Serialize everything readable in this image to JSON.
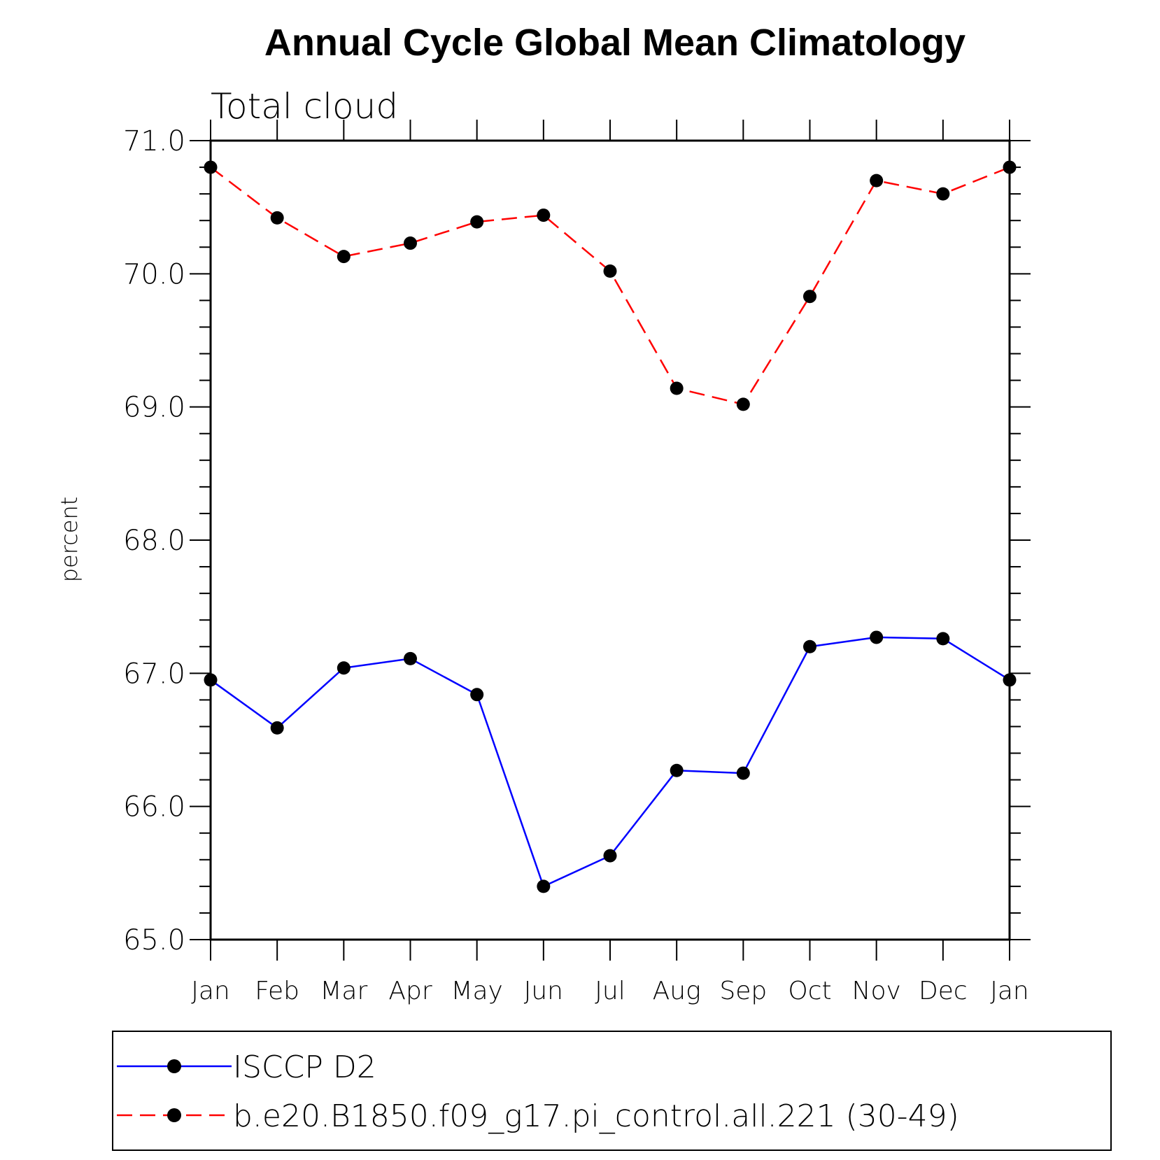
{
  "chart_data": {
    "type": "line",
    "title": "Annual Cycle Global Mean Climatology",
    "subtitle": "Total cloud",
    "xlabel": "",
    "ylabel": "percent",
    "ylim": [
      65.0,
      71.0
    ],
    "ytick_labels": [
      "65.0",
      "66.0",
      "67.0",
      "68.0",
      "69.0",
      "70.0",
      "71.0"
    ],
    "categories": [
      "Jan",
      "Feb",
      "Mar",
      "Apr",
      "May",
      "Jun",
      "Jul",
      "Aug",
      "Sep",
      "Oct",
      "Nov",
      "Dec",
      "Jan"
    ],
    "series": [
      {
        "name": "ISCCP D2",
        "color": "#0000ff",
        "dash": "solid",
        "marker": "circle",
        "values": [
          66.95,
          66.59,
          67.04,
          67.11,
          66.84,
          65.4,
          65.63,
          66.27,
          66.25,
          67.2,
          67.27,
          67.26,
          66.95
        ]
      },
      {
        "name": "b.e20.B1850.f09_g17.pi_control.all.221 (30-49)",
        "color": "#ff0000",
        "dash": "dashed",
        "marker": "circle",
        "values": [
          70.8,
          70.42,
          70.13,
          70.23,
          70.39,
          70.44,
          70.02,
          69.14,
          69.02,
          69.83,
          70.7,
          70.6,
          70.8
        ]
      }
    ],
    "legend": "bottom"
  }
}
